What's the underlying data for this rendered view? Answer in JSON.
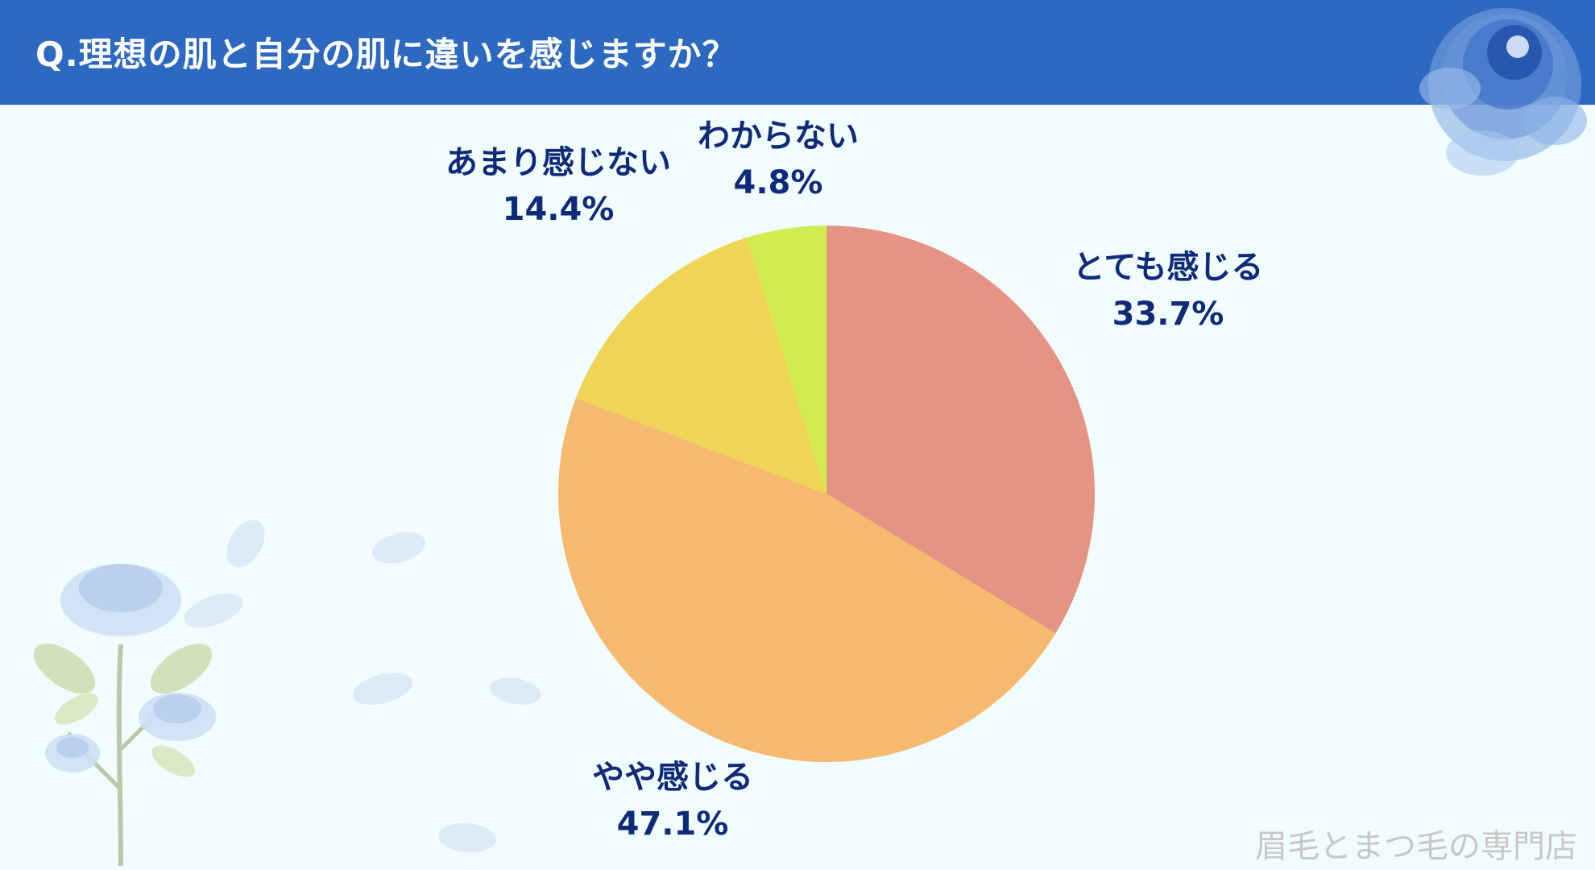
{
  "title": "Q.理想の肌と自分の肌に違いを感じますか？",
  "watermark": "眉毛とまつ毛の専門店",
  "colors": {
    "header_bg": "#2d69c1",
    "page_bg": "#f0fcfd",
    "label_text": "#0f2a78"
  },
  "chart_data": {
    "type": "pie",
    "title": "",
    "start_angle": "12 o'clock",
    "direction": "clockwise",
    "slices": [
      {
        "label": "とても感じる",
        "value": 33.7,
        "value_label": "33.7%",
        "color": "#e59382"
      },
      {
        "label": "やや感じる",
        "value": 47.1,
        "value_label": "47.1%",
        "color": "#f5b96f"
      },
      {
        "label": "あまり感じない",
        "value": 14.4,
        "value_label": "14.4%",
        "color": "#efd455"
      },
      {
        "label": "わからない",
        "value": 4.8,
        "value_label": "4.8%",
        "color": "#d2ec4f"
      }
    ]
  }
}
